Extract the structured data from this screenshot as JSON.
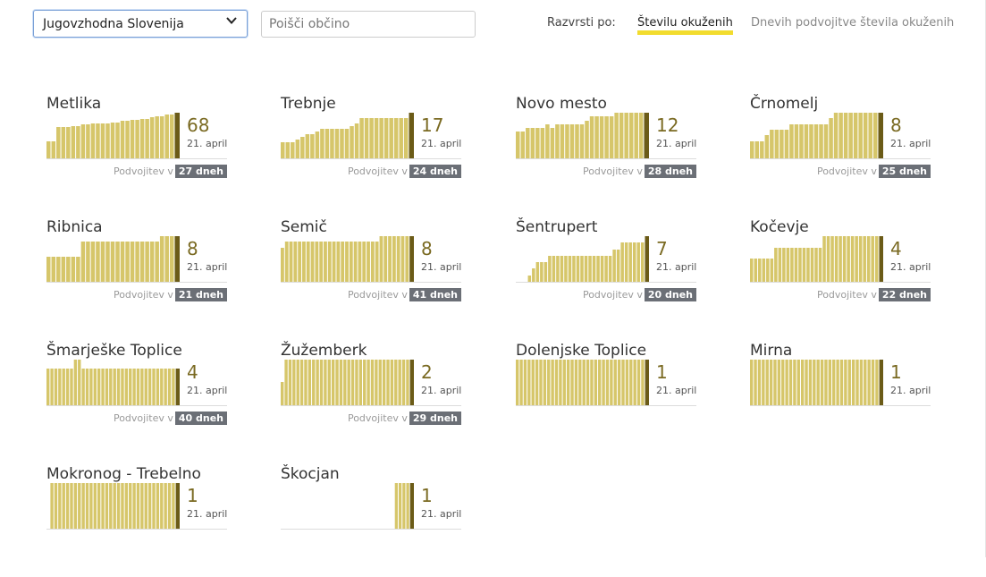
{
  "controls": {
    "region_select": "Jugovzhodna Slovenija",
    "search_placeholder": "Poišči občino",
    "sort_label": "Razvrsti po:",
    "sort_active": "Številu okuženih",
    "sort_inactive": "Dnevih podvojitve števila okuženih"
  },
  "colors": {
    "bar": "#d6c66a",
    "last_bar": "#6b5b17",
    "value": "#7a6a22",
    "badge": "#6b6f76",
    "sort_underline": "#f2dc2e"
  },
  "doubling_label": "Podvojitev v",
  "municipalities": [
    {
      "name": "Metlika",
      "value": "68",
      "date": "21. april",
      "doubling": "27 dneh",
      "levels": [
        0.37,
        0.37,
        0.69,
        0.69,
        0.69,
        0.71,
        0.71,
        0.74,
        0.74,
        0.76,
        0.76,
        0.76,
        0.76,
        0.79,
        0.79,
        0.82,
        0.82,
        0.85,
        0.85,
        0.87,
        0.87,
        0.9,
        0.93,
        0.93,
        0.96,
        0.96,
        1
      ]
    },
    {
      "name": "Trebnje",
      "value": "17",
      "date": "21. april",
      "doubling": "24 dneh",
      "levels": [
        0.35,
        0.35,
        0.35,
        0.41,
        0.47,
        0.53,
        0.53,
        0.59,
        0.65,
        0.65,
        0.65,
        0.65,
        0.65,
        0.65,
        0.71,
        0.76,
        0.88,
        0.88,
        0.88,
        0.88,
        0.88,
        0.88,
        0.88,
        0.88,
        0.88,
        0.88,
        1
      ]
    },
    {
      "name": "Novo mesto",
      "value": "12",
      "date": "21. april",
      "doubling": "28 dneh",
      "levels": [
        0.58,
        0.58,
        0.67,
        0.67,
        0.67,
        0.67,
        0.75,
        0.67,
        0.75,
        0.75,
        0.75,
        0.75,
        0.75,
        0.75,
        0.83,
        0.92,
        0.92,
        0.92,
        0.92,
        0.92,
        1,
        1,
        1,
        1,
        1,
        1,
        1
      ]
    },
    {
      "name": "Črnomelj",
      "value": "8",
      "date": "21. april",
      "doubling": "25 dneh",
      "levels": [
        0.38,
        0.38,
        0.38,
        0.5,
        0.63,
        0.63,
        0.63,
        0.63,
        0.75,
        0.75,
        0.75,
        0.75,
        0.75,
        0.75,
        0.75,
        0.75,
        0.88,
        1,
        1,
        1,
        1,
        1,
        1,
        1,
        1,
        1,
        1
      ]
    },
    {
      "name": "Ribnica",
      "value": "8",
      "date": "21. april",
      "doubling": "21 dneh",
      "levels": [
        0.55,
        0.55,
        0.55,
        0.55,
        0.55,
        0.55,
        0.55,
        0.88,
        0.88,
        0.88,
        0.88,
        0.88,
        0.88,
        0.88,
        0.88,
        0.88,
        0.88,
        0.88,
        0.88,
        0.88,
        0.88,
        0.88,
        0.88,
        1,
        1,
        1,
        1
      ]
    },
    {
      "name": "Semič",
      "value": "8",
      "date": "21. april",
      "doubling": "41 dneh",
      "levels": [
        0.75,
        0.88,
        0.88,
        0.88,
        0.88,
        0.88,
        0.88,
        0.88,
        0.88,
        0.88,
        0.88,
        0.88,
        0.88,
        0.88,
        0.88,
        0.88,
        0.88,
        0.88,
        0.88,
        0.88,
        0.88,
        0.88,
        0.88,
        1,
        1,
        1,
        1,
        1,
        1,
        1,
        1
      ]
    },
    {
      "name": "Šentrupert",
      "value": "7",
      "date": "21. april",
      "doubling": "20 dneh",
      "levels": [
        0,
        0,
        0,
        0.14,
        0.29,
        0.43,
        0.43,
        0.43,
        0.57,
        0.57,
        0.57,
        0.57,
        0.57,
        0.57,
        0.57,
        0.57,
        0.57,
        0.57,
        0.57,
        0.57,
        0.57,
        0.57,
        0.57,
        0.57,
        0.71,
        0.71,
        0.86,
        0.86,
        0.86,
        0.86,
        0.86,
        0.86,
        1
      ]
    },
    {
      "name": "Kočevje",
      "value": "4",
      "date": "21. april",
      "doubling": "22 dneh",
      "levels": [
        0.5,
        0.5,
        0.5,
        0.5,
        0.5,
        0.5,
        0.75,
        0.75,
        0.75,
        0.75,
        0.75,
        0.75,
        0.75,
        0.75,
        0.75,
        0.75,
        0.75,
        0.75,
        1,
        1,
        1,
        1,
        1,
        1,
        1,
        1,
        1,
        1,
        1,
        1,
        1,
        1,
        1
      ]
    },
    {
      "name": "Šmarješke Toplice",
      "value": "4",
      "date": "21. april",
      "doubling": "40 dneh",
      "levels": [
        0.8,
        0.8,
        0.8,
        0.8,
        0.8,
        0.8,
        0.8,
        1,
        1,
        0.8,
        0.8,
        0.8,
        0.8,
        0.8,
        0.8,
        0.8,
        0.8,
        0.8,
        0.8,
        0.8,
        0.8,
        0.8,
        0.8,
        0.8,
        0.8,
        0.8,
        0.8,
        0.8,
        0.8,
        0.8,
        0.8,
        0.8,
        0.8,
        0.8
      ]
    },
    {
      "name": "Žužemberk",
      "value": "2",
      "date": "21. april",
      "doubling": "29 dneh",
      "levels": [
        0.5,
        1,
        1,
        1,
        1,
        1,
        1,
        1,
        1,
        1,
        1,
        1,
        1,
        1,
        1,
        1,
        1,
        1,
        1,
        1,
        1,
        1,
        1,
        1,
        1,
        1,
        1,
        1,
        1,
        1,
        1,
        1,
        1,
        1
      ]
    },
    {
      "name": "Dolenjske Toplice",
      "value": "1",
      "date": "21. april",
      "doubling": "",
      "levels": [
        1,
        1,
        1,
        1,
        1,
        1,
        1,
        1,
        1,
        1,
        1,
        1,
        1,
        1,
        1,
        1,
        1,
        1,
        1,
        1,
        1,
        1,
        1,
        1,
        1,
        1,
        1,
        1,
        1,
        1,
        1,
        1,
        1,
        1
      ]
    },
    {
      "name": "Mirna",
      "value": "1",
      "date": "21. april",
      "doubling": "",
      "levels": [
        1,
        1,
        1,
        1,
        1,
        1,
        1,
        1,
        1,
        1,
        1,
        1,
        1,
        1,
        1,
        1,
        1,
        1,
        1,
        1,
        1,
        1,
        1,
        1,
        1,
        1,
        1,
        1,
        1,
        1,
        1,
        1,
        1,
        1
      ]
    },
    {
      "name": "Mokronog - Trebelno",
      "value": "1",
      "date": "21. april",
      "doubling": "",
      "levels": [
        0,
        1,
        1,
        1,
        1,
        1,
        1,
        1,
        1,
        1,
        1,
        1,
        1,
        1,
        1,
        1,
        1,
        1,
        1,
        1,
        1,
        1,
        1,
        1,
        1,
        1,
        1,
        1,
        1,
        1,
        1,
        1,
        1,
        1
      ]
    },
    {
      "name": "Škocjan",
      "value": "1",
      "date": "21. april",
      "doubling": "",
      "levels": [
        0,
        0,
        0,
        0,
        0,
        0,
        0,
        0,
        0,
        0,
        0,
        0,
        0,
        0,
        0,
        0,
        0,
        0,
        0,
        0,
        0,
        0,
        0,
        0,
        0,
        0,
        0,
        0,
        0,
        0,
        1,
        1,
        1,
        1,
        1
      ]
    }
  ]
}
